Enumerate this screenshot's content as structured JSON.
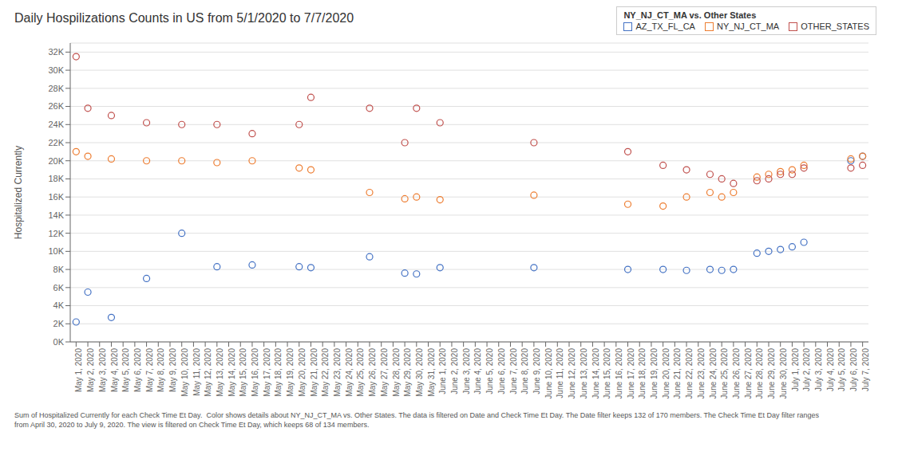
{
  "chart_data": {
    "type": "scatter",
    "title": "Daily Hospilizations Counts in US from 5/1/2020 to 7/7/2020",
    "y_label": "Hospitalized Currently",
    "legend_title": "NY_NJ_CT_MA vs. Other States",
    "legend": "upper right",
    "grid": true,
    "marker": "circle",
    "footnote": "Sum of Hospitalized Currently for each Check Time Et Day.  Color shows details about NY_NJ_CT_MA vs. Other States. The data is filtered on Date and Check Time Et Day. The Date filter keeps 132 of 170 members. The Check Time Et Day filter ranges\nfrom April 30, 2020 to July 9, 2020. The view is filtered on Check Time Et Day, which keeps 68 of 134 members.",
    "ylim": [
      0,
      33000
    ],
    "yticks": [
      {
        "value": 0,
        "label": "0K"
      },
      {
        "value": 2000,
        "label": "2K"
      },
      {
        "value": 4000,
        "label": "4K"
      },
      {
        "value": 6000,
        "label": "6K"
      },
      {
        "value": 8000,
        "label": "8K"
      },
      {
        "value": 10000,
        "label": "10K"
      },
      {
        "value": 12000,
        "label": "12K"
      },
      {
        "value": 14000,
        "label": "14K"
      },
      {
        "value": 16000,
        "label": "16K"
      },
      {
        "value": 18000,
        "label": "18K"
      },
      {
        "value": 20000,
        "label": "20K"
      },
      {
        "value": 22000,
        "label": "22K"
      },
      {
        "value": 24000,
        "label": "24K"
      },
      {
        "value": 26000,
        "label": "26K"
      },
      {
        "value": 28000,
        "label": "28K"
      },
      {
        "value": 30000,
        "label": "30K"
      },
      {
        "value": 32000,
        "label": "32K"
      }
    ],
    "categories": [
      "May 1, 2020",
      "May 2, 2020",
      "May 3, 2020",
      "May 4, 2020",
      "May 5, 2020",
      "May 6, 2020",
      "May 7, 2020",
      "May 8, 2020",
      "May 9, 2020",
      "May 10, 2020",
      "May 11, 2020",
      "May 12, 2020",
      "May 13, 2020",
      "May 14, 2020",
      "May 15, 2020",
      "May 16, 2020",
      "May 17, 2020",
      "May 18, 2020",
      "May 19, 2020",
      "May 20, 2020",
      "May 21, 2020",
      "May 22, 2020",
      "May 23, 2020",
      "May 24, 2020",
      "May 25, 2020",
      "May 26, 2020",
      "May 27, 2020",
      "May 28, 2020",
      "May 29, 2020",
      "May 30, 2020",
      "May 31, 2020",
      "June 1, 2020",
      "June 2, 2020",
      "June 3, 2020",
      "June 4, 2020",
      "June 5, 2020",
      "June 6, 2020",
      "June 7, 2020",
      "June 8, 2020",
      "June 9, 2020",
      "June 10, 2020",
      "June 11, 2020",
      "June 12, 2020",
      "June 13, 2020",
      "June 14, 2020",
      "June 15, 2020",
      "June 16, 2020",
      "June 17, 2020",
      "June 18, 2020",
      "June 19, 2020",
      "June 20, 2020",
      "June 21, 2020",
      "June 22, 2020",
      "June 23, 2020",
      "June 24, 2020",
      "June 25, 2020",
      "June 26, 2020",
      "June 27, 2020",
      "June 28, 2020",
      "June 29, 2020",
      "June 30, 2020",
      "July 1, 2020",
      "July 2, 2020",
      "July 3, 2020",
      "July 4, 2020",
      "July 5, 2020",
      "July 6, 2020",
      "July 7, 2020"
    ],
    "series": [
      {
        "name": "AZ_TX_FL_CA",
        "color": "#4472C4",
        "values": [
          2200,
          5500,
          null,
          2700,
          null,
          null,
          7000,
          null,
          null,
          12000,
          null,
          null,
          8300,
          null,
          null,
          8500,
          null,
          null,
          null,
          8300,
          8200,
          null,
          null,
          null,
          null,
          9400,
          null,
          null,
          7600,
          7500,
          null,
          8200,
          null,
          null,
          null,
          null,
          null,
          null,
          null,
          8200,
          null,
          null,
          null,
          null,
          null,
          null,
          null,
          8000,
          null,
          null,
          8000,
          null,
          7900,
          null,
          8000,
          7900,
          8000,
          null,
          9800,
          10000,
          10200,
          10500,
          11000,
          null,
          null,
          null,
          20000,
          20500
        ]
      },
      {
        "name": "NY_NJ_CT_MA",
        "color": "#ED7D31",
        "values": [
          21000,
          20500,
          null,
          20200,
          null,
          null,
          20000,
          null,
          null,
          20000,
          null,
          null,
          19800,
          null,
          null,
          20000,
          null,
          null,
          null,
          19200,
          19000,
          null,
          null,
          null,
          null,
          16500,
          null,
          null,
          15800,
          16000,
          null,
          15700,
          null,
          null,
          null,
          null,
          null,
          null,
          null,
          16200,
          null,
          null,
          null,
          null,
          null,
          null,
          null,
          15200,
          null,
          null,
          15000,
          null,
          16000,
          null,
          16500,
          16000,
          16500,
          null,
          18200,
          18500,
          18800,
          19000,
          19500,
          null,
          null,
          null,
          20200,
          20500
        ]
      },
      {
        "name": "OTHER_STATES",
        "color": "#C0504D",
        "values": [
          31500,
          25800,
          null,
          25000,
          null,
          null,
          24200,
          null,
          null,
          24000,
          null,
          null,
          24000,
          null,
          null,
          23000,
          null,
          null,
          null,
          24000,
          27000,
          null,
          null,
          null,
          null,
          25800,
          null,
          null,
          22000,
          25800,
          null,
          24200,
          null,
          null,
          null,
          null,
          null,
          null,
          null,
          22000,
          null,
          null,
          null,
          null,
          null,
          null,
          null,
          21000,
          null,
          null,
          19500,
          null,
          19000,
          null,
          18500,
          18000,
          17500,
          null,
          17800,
          18000,
          18500,
          18500,
          19200,
          null,
          null,
          null,
          19200,
          19500
        ]
      }
    ]
  }
}
